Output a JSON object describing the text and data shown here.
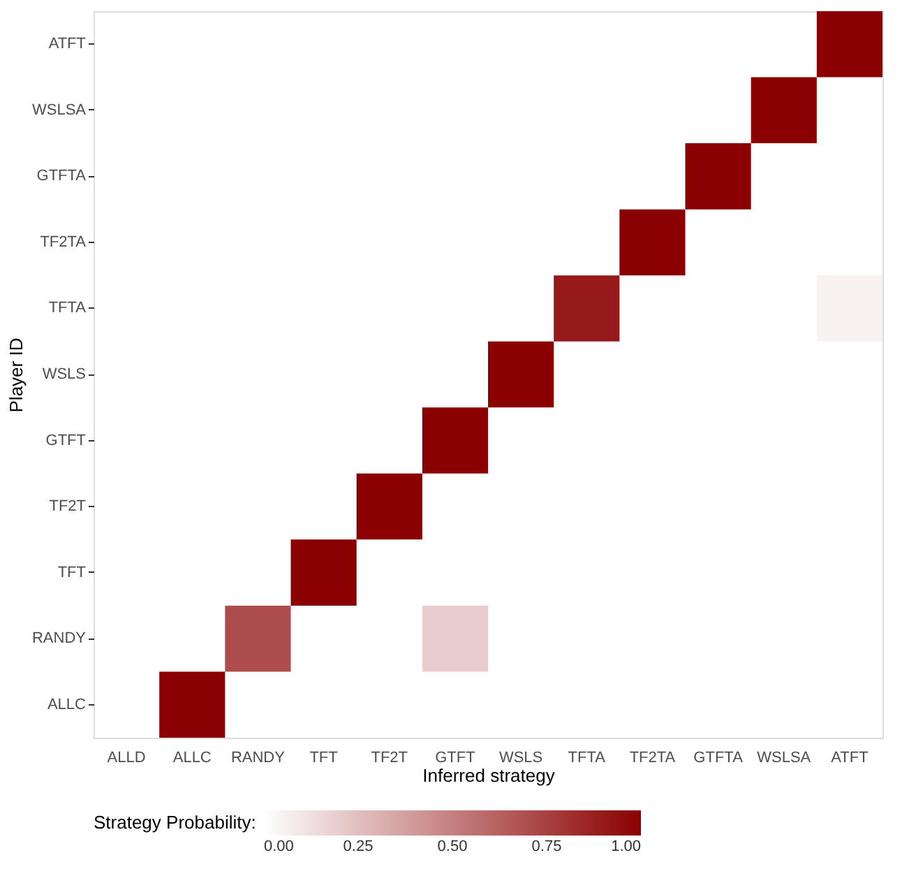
{
  "chart_data": {
    "type": "heatmap",
    "xlabel": "Inferred strategy",
    "ylabel": "Player ID",
    "legend_title": "Strategy Probability:",
    "categories": [
      "ALLD",
      "ALLC",
      "RANDY",
      "TFT",
      "TF2T",
      "GTFT",
      "WSLS",
      "TFTA",
      "TF2TA",
      "GTFTA",
      "WSLSA",
      "ATFT"
    ],
    "y_categories": [
      "ATFT",
      "WSLSA",
      "GTFTA",
      "TF2TA",
      "TFTA",
      "WSLS",
      "GTFT",
      "TF2T",
      "TFT",
      "RANDY",
      "ALLC"
    ],
    "cells": [
      [
        null,
        null,
        null,
        null,
        null,
        null,
        null,
        null,
        null,
        null,
        null,
        1.0
      ],
      [
        null,
        null,
        null,
        null,
        null,
        null,
        null,
        null,
        null,
        null,
        1.0,
        null
      ],
      [
        null,
        null,
        null,
        null,
        null,
        null,
        null,
        null,
        null,
        1.0,
        null,
        null
      ],
      [
        null,
        null,
        null,
        null,
        null,
        null,
        null,
        null,
        1.0,
        null,
        null,
        null
      ],
      [
        null,
        null,
        null,
        null,
        null,
        null,
        null,
        0.9,
        null,
        null,
        null,
        0.05
      ],
      [
        null,
        null,
        null,
        null,
        null,
        null,
        1.0,
        null,
        null,
        null,
        null,
        null
      ],
      [
        null,
        null,
        null,
        null,
        null,
        1.0,
        null,
        null,
        null,
        null,
        null,
        null
      ],
      [
        null,
        null,
        null,
        null,
        1.0,
        null,
        null,
        null,
        null,
        null,
        null,
        null
      ],
      [
        null,
        null,
        null,
        1.0,
        null,
        null,
        null,
        null,
        null,
        null,
        null,
        null
      ],
      [
        null,
        null,
        0.7,
        null,
        null,
        0.2,
        null,
        null,
        null,
        null,
        null,
        null
      ],
      [
        null,
        1.0,
        null,
        null,
        null,
        null,
        null,
        null,
        null,
        null,
        null,
        null
      ]
    ],
    "colors": [
      "#ffffff",
      "#8b0000"
    ],
    "clim": [
      0,
      1
    ],
    "cticks": [
      {
        "value": 0,
        "label": "0.00"
      },
      {
        "value": 0.25,
        "label": "0.25"
      },
      {
        "value": 0.5,
        "label": "0.50"
      },
      {
        "value": 0.75,
        "label": "0.75"
      },
      {
        "value": 1,
        "label": "1.00"
      }
    ],
    "grid": false
  }
}
